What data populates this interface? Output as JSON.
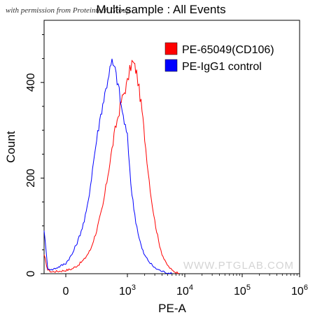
{
  "watermarks": {
    "top": "with permission from Proteintech Group",
    "bottom": "WWW.PTGLAB.COM"
  },
  "chart_data": {
    "type": "line",
    "title": "Multi-sample : All Events",
    "xlabel": "PE-A",
    "ylabel": "Count",
    "x_scale": "biexponential",
    "xlim": [
      -300,
      1000000
    ],
    "ylim": [
      0,
      530
    ],
    "x_ticks": [
      {
        "value": 0,
        "label": "0"
      },
      {
        "value": 1000,
        "label": "10",
        "exp": "3"
      },
      {
        "value": 10000,
        "label": "10",
        "exp": "4"
      },
      {
        "value": 100000,
        "label": "10",
        "exp": "5"
      },
      {
        "value": 1000000,
        "label": "10",
        "exp": "6"
      }
    ],
    "y_ticks": [
      {
        "value": 0,
        "label": "0"
      },
      {
        "value": 200,
        "label": "200"
      },
      {
        "value": 400,
        "label": "400"
      }
    ],
    "legend_position": "top-right",
    "grid": false,
    "series": [
      {
        "name": "PE-65049(CD106)",
        "color": "#ff0000",
        "x": [
          -300,
          -250,
          -200,
          -100,
          0,
          100,
          200,
          300,
          400,
          500,
          600,
          700,
          800,
          900,
          1000,
          1100,
          1200,
          1300,
          1450,
          1600,
          1800,
          2000,
          2300,
          2600,
          3000,
          3500,
          4000,
          4500,
          5200,
          6000,
          7000,
          8000
        ],
        "y": [
          40,
          8,
          4,
          5,
          7,
          10,
          18,
          30,
          50,
          90,
          140,
          220,
          300,
          360,
          400,
          425,
          442,
          438,
          420,
          385,
          340,
          285,
          215,
          160,
          110,
          68,
          42,
          26,
          15,
          7,
          3,
          1
        ]
      },
      {
        "name": "PE-IgG1 control",
        "color": "#0000ff",
        "x": [
          -300,
          -250,
          -200,
          -100,
          0,
          100,
          200,
          300,
          350,
          400,
          450,
          500,
          550,
          600,
          650,
          700,
          750,
          800,
          850,
          900,
          1000,
          1100,
          1200,
          1400,
          1600,
          1800,
          2000,
          2500,
          3000,
          4000,
          5000,
          6000
        ],
        "y": [
          90,
          12,
          8,
          14,
          22,
          40,
          70,
          110,
          140,
          185,
          235,
          280,
          320,
          355,
          385,
          420,
          442,
          425,
          395,
          350,
          285,
          220,
          165,
          110,
          75,
          52,
          38,
          22,
          12,
          5,
          2,
          0
        ]
      }
    ]
  }
}
